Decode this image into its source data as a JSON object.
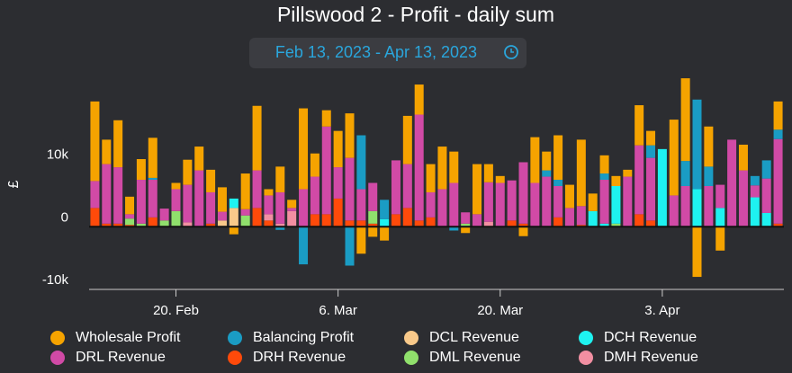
{
  "chart_data": {
    "type": "stacked_bar",
    "title": "Pillswood 2 - Profit - daily sum",
    "subtitle": "Feb 13, 2023 - Apr 13, 2023",
    "y_label": "£",
    "ylim": [
      -10000,
      24000
    ],
    "yticks": [
      {
        "value": -10000,
        "label": "-10k"
      },
      0,
      {
        "value": 10000,
        "label": "10k"
      }
    ],
    "x": [
      "2023-02-13",
      "2023-02-14",
      "2023-02-15",
      "2023-02-16",
      "2023-02-17",
      "2023-02-18",
      "2023-02-19",
      "2023-02-20",
      "2023-02-21",
      "2023-02-22",
      "2023-02-23",
      "2023-02-24",
      "2023-02-25",
      "2023-02-26",
      "2023-02-27",
      "2023-02-28",
      "2023-03-01",
      "2023-03-02",
      "2023-03-03",
      "2023-03-04",
      "2023-03-05",
      "2023-03-06",
      "2023-03-07",
      "2023-03-08",
      "2023-03-09",
      "2023-03-10",
      "2023-03-11",
      "2023-03-12",
      "2023-03-13",
      "2023-03-14",
      "2023-03-15",
      "2023-03-16",
      "2023-03-17",
      "2023-03-18",
      "2023-03-19",
      "2023-03-20",
      "2023-03-21",
      "2023-03-22",
      "2023-03-23",
      "2023-03-24",
      "2023-03-25",
      "2023-03-26",
      "2023-03-27",
      "2023-03-28",
      "2023-03-29",
      "2023-03-30",
      "2023-03-31",
      "2023-04-01",
      "2023-04-02",
      "2023-04-03",
      "2023-04-04",
      "2023-04-05",
      "2023-04-06",
      "2023-04-07",
      "2023-04-08",
      "2023-04-09",
      "2023-04-10",
      "2023-04-11",
      "2023-04-12",
      "2023-04-13"
    ],
    "xticks": [
      {
        "value": "2023-02-20",
        "label": "20. Feb"
      },
      {
        "value": "2023-03-06",
        "label": "6. Mar"
      },
      {
        "value": "2023-03-20",
        "label": "20. Mar"
      },
      {
        "value": "2023-04-03",
        "label": "3. Apr"
      }
    ],
    "series": [
      {
        "name": "Wholesale Profit",
        "color": "#f5a300",
        "values": [
          12700,
          3900,
          7500,
          2800,
          3300,
          6400,
          0,
          1000,
          4000,
          3800,
          3600,
          3900,
          -1200,
          5700,
          10300,
          1000,
          4100,
          1300,
          12900,
          3700,
          2600,
          5800,
          7100,
          -4300,
          -1600,
          -2200,
          0,
          7700,
          4800,
          4500,
          6800,
          5000,
          -1000,
          8000,
          2900,
          1100,
          0,
          -1500,
          7300,
          3000,
          7100,
          3700,
          10600,
          2800,
          2900,
          1600,
          1100,
          6400,
          2300,
          0,
          12100,
          13200,
          -8000,
          6400,
          -3800,
          0,
          4100,
          0,
          0,
          4500
        ]
      },
      {
        "name": "Balancing Profit",
        "color": "#1a9cc4",
        "values": [
          0,
          0,
          0,
          0,
          0,
          300,
          0,
          0,
          0,
          0,
          0,
          0,
          0,
          0,
          0,
          0,
          -500,
          0,
          -6000,
          0,
          0,
          0,
          -6200,
          8600,
          0,
          3100,
          0,
          0,
          0,
          0,
          0,
          -600,
          0,
          0,
          0,
          0,
          0,
          0,
          0,
          1000,
          1000,
          0,
          0,
          0,
          1000,
          0,
          0,
          0,
          2000,
          0,
          0,
          4000,
          14300,
          3100,
          0,
          0,
          0,
          1500,
          2900,
          1500
        ]
      },
      {
        "name": "DCL Revenue",
        "color": "#f9c98a",
        "values": [
          0,
          0,
          0,
          0,
          0,
          0,
          0,
          0,
          0,
          0,
          0,
          1000,
          3000,
          0,
          0,
          0,
          0,
          0,
          0,
          0,
          0,
          0,
          0,
          0,
          0,
          0,
          0,
          0,
          0,
          0,
          0,
          0,
          0,
          0,
          0,
          0,
          0,
          0,
          0,
          0,
          0,
          0,
          0,
          0,
          0,
          0,
          0,
          0,
          0,
          0,
          0,
          0,
          0,
          0,
          0,
          0,
          0,
          0,
          0,
          0
        ]
      },
      {
        "name": "DCH Revenue",
        "color": "#1ef2f0",
        "values": [
          0,
          0,
          0,
          0,
          0,
          0,
          0,
          0,
          0,
          0,
          0,
          0,
          1500,
          0,
          0,
          0,
          0,
          0,
          0,
          0,
          0,
          0,
          0,
          0,
          0,
          1200,
          0,
          0,
          0,
          0,
          0,
          0,
          0,
          0,
          0,
          0,
          0,
          0,
          0,
          0,
          0,
          0,
          0,
          2500,
          500,
          6000,
          0,
          0,
          0,
          12400,
          0,
          0,
          6000,
          0,
          3000,
          0,
          0,
          4700,
          2200,
          0
        ]
      },
      {
        "name": "DRL Revenue",
        "color": "#d14aa6",
        "values": [
          4300,
          9500,
          9000,
          700,
          7000,
          6000,
          1900,
          3500,
          6000,
          9000,
          5000,
          1400,
          0,
          1000,
          6000,
          3000,
          5000,
          500,
          6000,
          6000,
          14000,
          5000,
          10000,
          5000,
          4500,
          0,
          8600,
          7000,
          16900,
          4000,
          6000,
          7000,
          1800,
          2000,
          6300,
          7000,
          6400,
          9800,
          7000,
          8000,
          5000,
          3000,
          3000,
          0,
          7000,
          0,
          8000,
          11000,
          10000,
          0,
          5000,
          6500,
          0,
          6500,
          3700,
          13900,
          9000,
          1900,
          5500,
          13500
        ]
      },
      {
        "name": "DRH Revenue",
        "color": "#ff4a0a",
        "values": [
          3000,
          500,
          500,
          300,
          0,
          1500,
          0,
          0,
          0,
          0,
          500,
          0,
          0,
          0,
          3000,
          1000,
          0,
          0,
          0,
          2000,
          2000,
          4500,
          1000,
          1000,
          500,
          0,
          2000,
          3000,
          1000,
          1500,
          0,
          0,
          0,
          0,
          0,
          0,
          1000,
          500,
          0,
          0,
          1500,
          0,
          300,
          0,
          0,
          0,
          0,
          2000,
          1000,
          0,
          0,
          0,
          0,
          0,
          0,
          0,
          0,
          0,
          0,
          500
        ]
      },
      {
        "name": "DML Revenue",
        "color": "#90e06c",
        "values": [
          0,
          0,
          0,
          1000,
          500,
          0,
          1000,
          2500,
          0,
          0,
          0,
          0,
          0,
          1800,
          0,
          0,
          0,
          0,
          0,
          0,
          0,
          0,
          0,
          0,
          2000,
          0,
          0,
          0,
          0,
          0,
          0,
          0,
          500,
          0,
          0,
          0,
          0,
          0,
          0,
          0,
          0,
          0,
          0,
          0,
          0,
          500,
          0,
          0,
          0,
          0,
          0,
          0,
          0,
          0,
          0,
          0,
          0,
          0,
          0,
          0
        ]
      },
      {
        "name": "DMH Revenue",
        "color": "#f28fa2",
        "values": [
          0,
          0,
          0,
          0,
          0,
          0,
          0,
          0,
          700,
          0,
          0,
          0,
          0,
          0,
          0,
          1000,
          500,
          2500,
          0,
          0,
          0,
          0,
          0,
          0,
          0,
          0,
          0,
          0,
          0,
          0,
          0,
          0,
          0,
          0,
          800,
          0,
          0,
          0,
          0,
          0,
          0,
          0,
          0,
          0,
          0,
          0,
          0,
          0,
          0,
          0,
          0,
          0,
          0,
          0,
          0,
          0,
          0,
          0,
          0,
          0
        ]
      }
    ]
  }
}
